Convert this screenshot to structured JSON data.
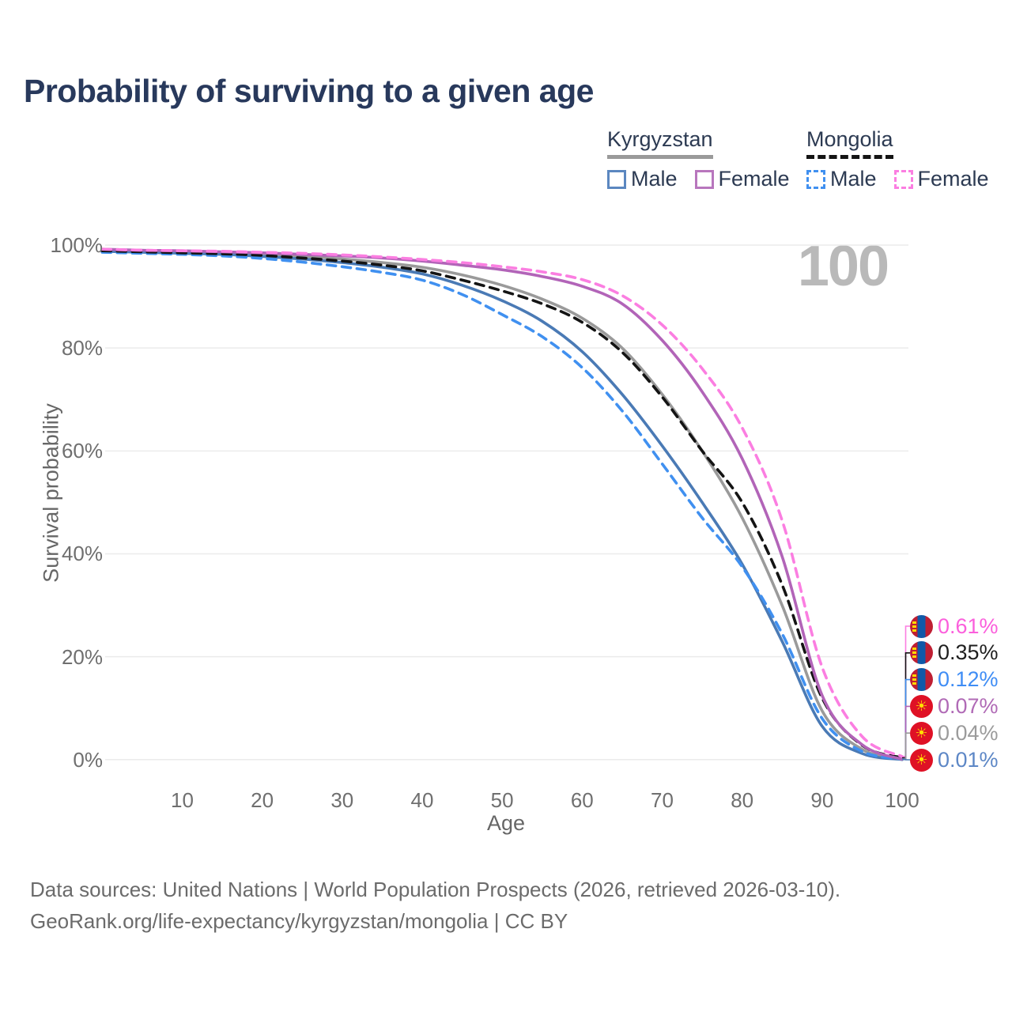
{
  "title": "Probability of surviving to a given age",
  "watermark": "100",
  "legend": {
    "groups": [
      {
        "name": "Kyrgyzstan",
        "line_style": "solid",
        "underline_color": "#9a9a9a",
        "items": [
          {
            "label": "Male",
            "color": "#5b87c0",
            "dashed": false
          },
          {
            "label": "Female",
            "color": "#b876bd",
            "dashed": false
          }
        ]
      },
      {
        "name": "Mongolia",
        "line_style": "dashed",
        "underline_color": "#141414",
        "items": [
          {
            "label": "Male",
            "color": "#4090f0",
            "dashed": true
          },
          {
            "label": "Female",
            "color": "#fb7ee1",
            "dashed": true
          }
        ]
      }
    ]
  },
  "y_axis": {
    "label": "Survival probability",
    "tick_values": [
      0,
      20,
      40,
      60,
      80,
      100
    ],
    "tick_labels": [
      "0%",
      "20%",
      "40%",
      "60%",
      "80%",
      "100%"
    ]
  },
  "x_axis": {
    "label": "Age",
    "tick_values": [
      10,
      20,
      30,
      40,
      50,
      60,
      70,
      80,
      90,
      100
    ]
  },
  "footer": {
    "line1": "Data sources: United Nations | World Population Prospects (2026, retrieved 2026-03-10).",
    "line2": "GeoRank.org/life-expectancy/kyrgyzstan/mongolia | CC BY"
  },
  "chart_data": {
    "type": "line",
    "title": "Probability of surviving to a given age",
    "xlabel": "Age",
    "ylabel": "Survival probability",
    "xlim": [
      0,
      100
    ],
    "ylim": [
      0,
      100
    ],
    "grid": true,
    "x": [
      0,
      5,
      10,
      15,
      20,
      25,
      30,
      35,
      40,
      45,
      50,
      55,
      60,
      65,
      70,
      75,
      80,
      85,
      90,
      95,
      100
    ],
    "series": [
      {
        "name": "Mongolia Female",
        "country": "Mongolia",
        "sex": "Female",
        "color": "#fb7ee1",
        "dashed": true,
        "flag": "mn",
        "values": [
          99.2,
          99.0,
          98.9,
          98.8,
          98.6,
          98.4,
          98.1,
          97.7,
          97.2,
          96.6,
          95.8,
          94.8,
          93.3,
          90.2,
          84.5,
          76.0,
          64.5,
          46.5,
          18.0,
          4.5,
          0.61
        ],
        "end_label": {
          "text": "0.61%",
          "color": "#fb5fdc"
        }
      },
      {
        "name": "Mongolia",
        "country": "Mongolia",
        "sex": "Both",
        "color": "#141414",
        "dashed": true,
        "flag": "mn",
        "values": [
          98.9,
          98.7,
          98.5,
          98.3,
          98.0,
          97.5,
          96.9,
          96.1,
          95.0,
          93.2,
          91.1,
          88.6,
          85.0,
          79.2,
          70.5,
          60.0,
          50.0,
          34.0,
          12.0,
          2.8,
          0.35
        ],
        "end_label": {
          "text": "0.35%",
          "color": "#1f1f1f"
        }
      },
      {
        "name": "Mongolia Male",
        "country": "Mongolia",
        "sex": "Male",
        "color": "#4090f0",
        "dashed": true,
        "flag": "mn",
        "values": [
          98.6,
          98.4,
          98.2,
          97.9,
          97.4,
          96.7,
          95.8,
          94.7,
          93.2,
          90.4,
          86.5,
          82.2,
          76.2,
          67.8,
          57.5,
          47.0,
          37.5,
          24.5,
          8.0,
          1.6,
          0.12
        ],
        "end_label": {
          "text": "0.12%",
          "color": "#3f8df5"
        }
      },
      {
        "name": "Kyrgyzstan Female",
        "country": "Kyrgyzstan",
        "sex": "Female",
        "color": "#b264b8",
        "dashed": false,
        "flag": "kg",
        "values": [
          99.2,
          99.0,
          98.9,
          98.7,
          98.5,
          98.2,
          97.9,
          97.5,
          96.9,
          96.1,
          95.2,
          93.9,
          92.0,
          88.6,
          81.5,
          71.5,
          58.5,
          39.5,
          12.5,
          2.9,
          0.07
        ],
        "end_label": {
          "text": "0.07%",
          "color": "#b06ab6"
        }
      },
      {
        "name": "Kyrgyzstan",
        "country": "Kyrgyzstan",
        "sex": "Both",
        "color": "#9a9a9a",
        "dashed": false,
        "flag": "kg",
        "values": [
          99.0,
          98.8,
          98.6,
          98.4,
          98.2,
          97.8,
          97.3,
          96.6,
          95.7,
          94.2,
          92.2,
          89.5,
          85.8,
          80.0,
          71.0,
          60.0,
          47.0,
          30.0,
          9.5,
          2.0,
          0.04
        ],
        "end_label": {
          "text": "0.04%",
          "color": "#9b9b9b"
        }
      },
      {
        "name": "Kyrgyzstan Male",
        "country": "Kyrgyzstan",
        "sex": "Male",
        "color": "#4a7ab5",
        "dashed": false,
        "flag": "kg",
        "values": [
          98.8,
          98.6,
          98.4,
          98.2,
          97.8,
          97.3,
          96.6,
          95.7,
          94.4,
          92.2,
          89.2,
          85.2,
          79.3,
          71.0,
          61.0,
          50.0,
          38.0,
          23.0,
          6.5,
          1.2,
          0.01
        ],
        "end_label": {
          "text": "0.01%",
          "color": "#5d87c6"
        }
      }
    ]
  }
}
